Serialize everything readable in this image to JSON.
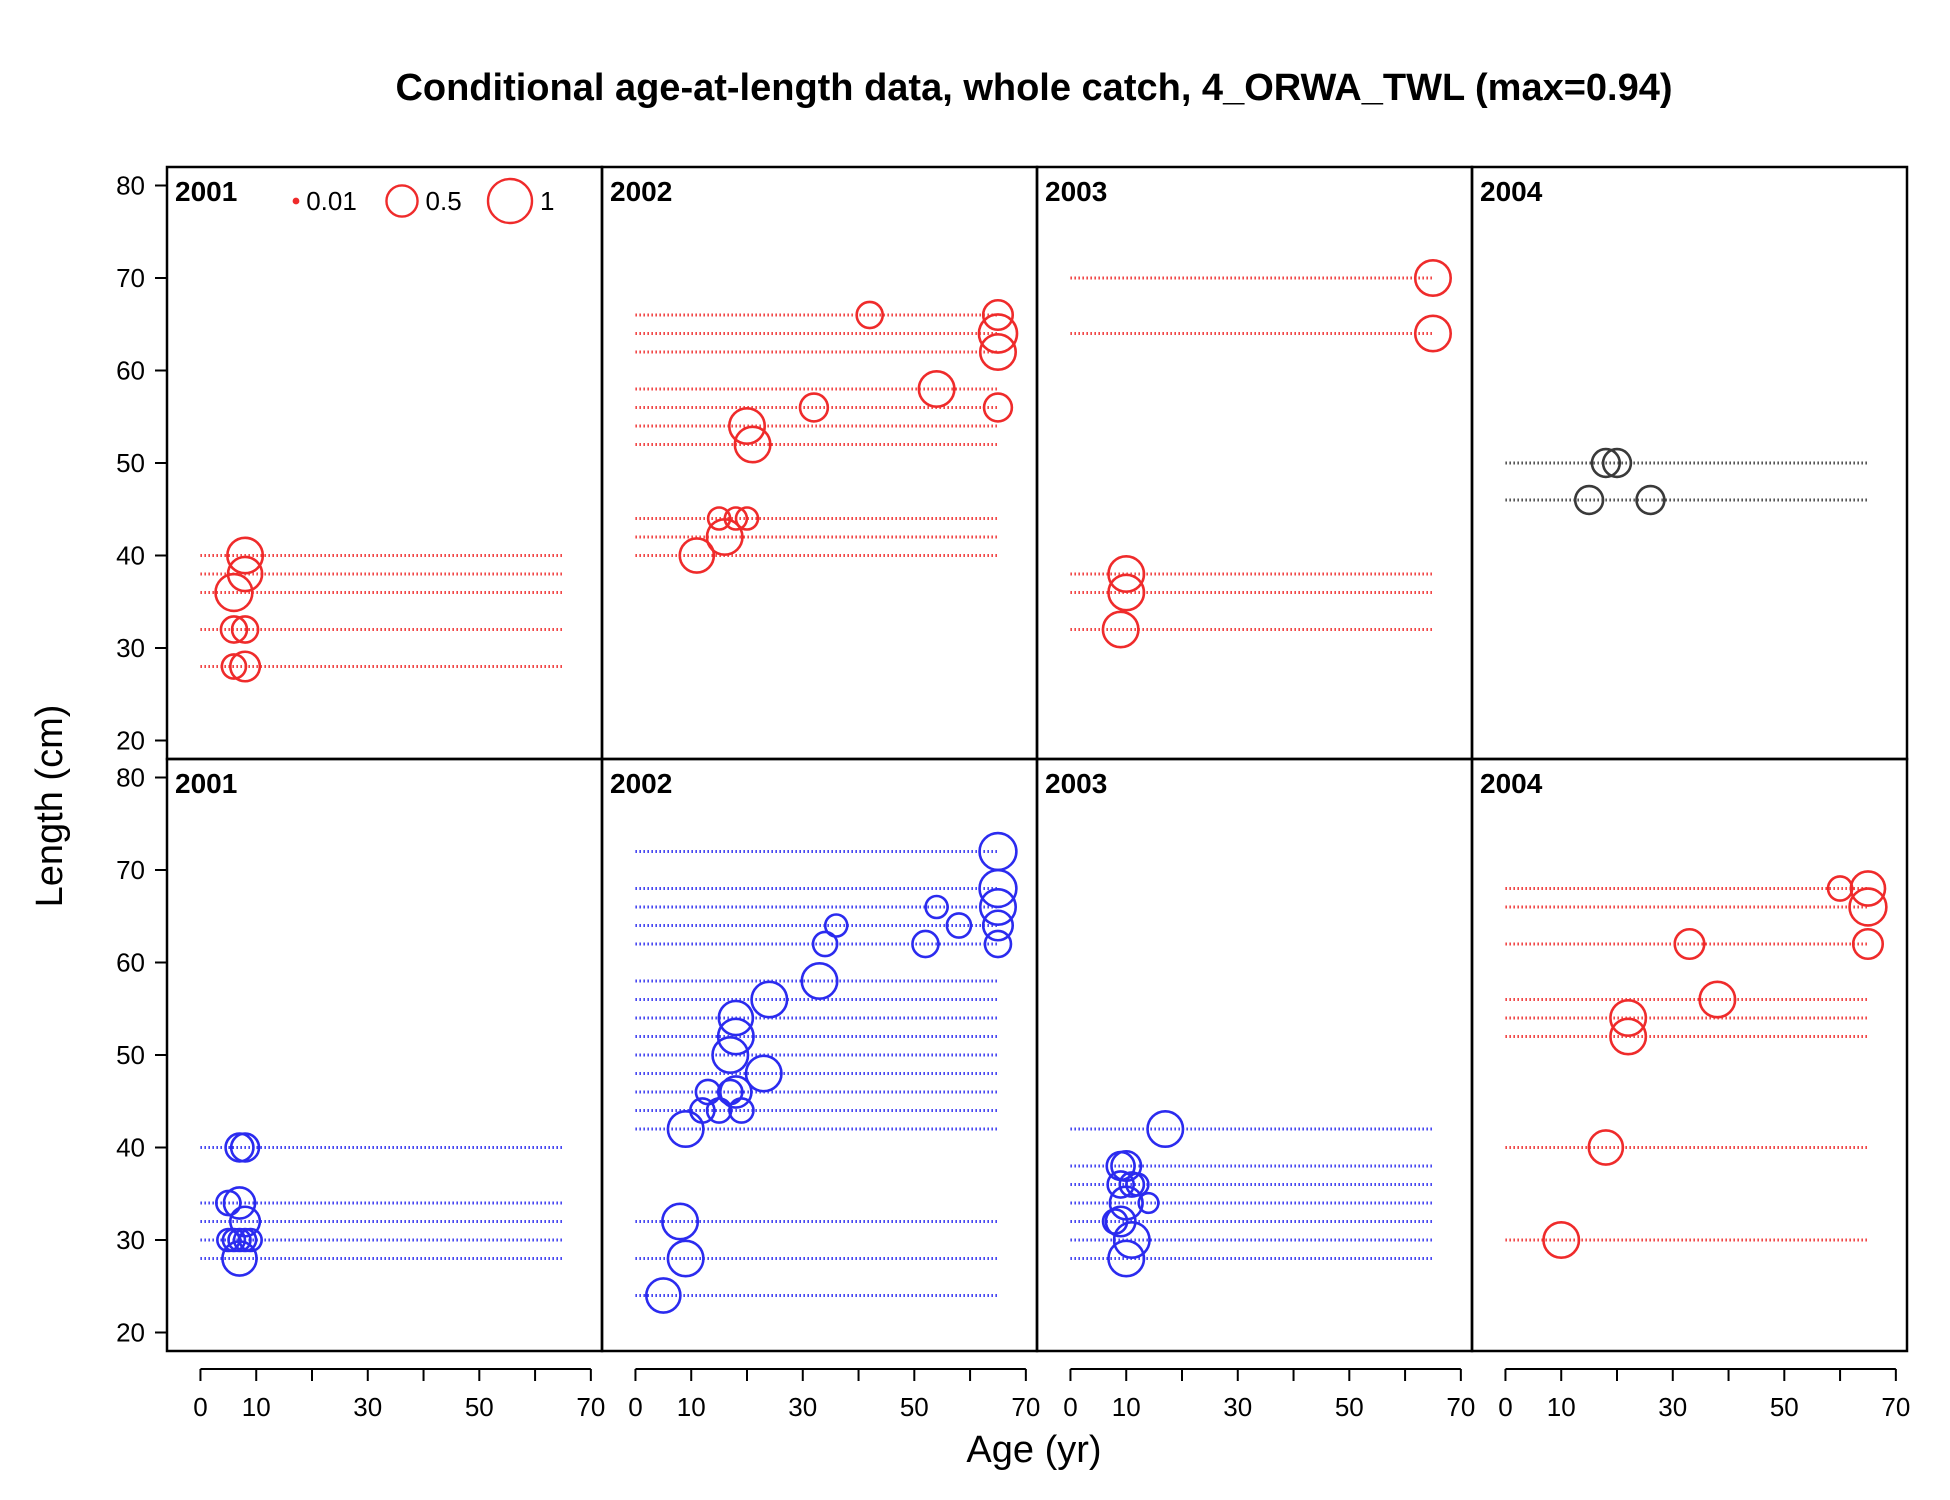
{
  "chart_data": {
    "type": "scatter",
    "title": "Conditional age-at-length data, whole catch, 4_ORWA_TWL (max=0.94)",
    "xlabel": "Age (yr)",
    "ylabel": "Length (cm)",
    "xlim": [
      -6,
      72
    ],
    "ylim": [
      18,
      82
    ],
    "x_ticks": [
      0,
      10,
      30,
      50,
      70
    ],
    "x_minor_ticks": [
      20,
      40,
      60
    ],
    "y_ticks": [
      20,
      30,
      40,
      50,
      60,
      70,
      80
    ],
    "grid": false,
    "colors": {
      "female": "#ef2b2b",
      "male": "#2b2bef",
      "unsexed": "#3a3a3a"
    },
    "legend": {
      "placement": "top-left of first panel",
      "entries": [
        {
          "label": "0.01",
          "size": 0.01
        },
        {
          "label": "0.5",
          "size": 0.5
        },
        {
          "label": "1",
          "size": 1
        }
      ]
    },
    "panels": [
      {
        "label": "2001",
        "row": 0,
        "col": 0,
        "color": "#ef2b2b",
        "lines": [
          {
            "y": 28,
            "x_end": 65
          },
          {
            "y": 32,
            "x_end": 65
          },
          {
            "y": 36,
            "x_end": 65
          },
          {
            "y": 38,
            "x_end": 65
          },
          {
            "y": 40,
            "x_end": 65
          }
        ],
        "points": [
          {
            "x": 6,
            "y": 28,
            "size": 0.3
          },
          {
            "x": 8,
            "y": 28,
            "size": 0.45
          },
          {
            "x": 6,
            "y": 32,
            "size": 0.35
          },
          {
            "x": 8,
            "y": 32,
            "size": 0.35
          },
          {
            "x": 6,
            "y": 36,
            "size": 0.7
          },
          {
            "x": 8,
            "y": 38,
            "size": 0.6
          },
          {
            "x": 8,
            "y": 40,
            "size": 0.65
          }
        ]
      },
      {
        "label": "2002",
        "row": 0,
        "col": 1,
        "color": "#ef2b2b",
        "lines": [
          {
            "y": 40,
            "x_end": 65
          },
          {
            "y": 42,
            "x_end": 65
          },
          {
            "y": 44,
            "x_end": 65
          },
          {
            "y": 52,
            "x_end": 65
          },
          {
            "y": 54,
            "x_end": 65
          },
          {
            "y": 56,
            "x_end": 65
          },
          {
            "y": 58,
            "x_end": 65
          },
          {
            "y": 62,
            "x_end": 65
          },
          {
            "y": 64,
            "x_end": 65
          },
          {
            "y": 66,
            "x_end": 65
          }
        ],
        "points": [
          {
            "x": 11,
            "y": 40,
            "size": 0.6
          },
          {
            "x": 16,
            "y": 42,
            "size": 0.65
          },
          {
            "x": 15,
            "y": 44,
            "size": 0.25
          },
          {
            "x": 18,
            "y": 44,
            "size": 0.25
          },
          {
            "x": 20,
            "y": 44,
            "size": 0.25
          },
          {
            "x": 21,
            "y": 52,
            "size": 0.65
          },
          {
            "x": 20,
            "y": 54,
            "size": 0.65
          },
          {
            "x": 32,
            "y": 56,
            "size": 0.4
          },
          {
            "x": 65,
            "y": 56,
            "size": 0.4
          },
          {
            "x": 54,
            "y": 58,
            "size": 0.65
          },
          {
            "x": 65,
            "y": 62,
            "size": 0.65
          },
          {
            "x": 65,
            "y": 64,
            "size": 0.75
          },
          {
            "x": 42,
            "y": 66,
            "size": 0.35
          },
          {
            "x": 65,
            "y": 66,
            "size": 0.45
          }
        ]
      },
      {
        "label": "2003",
        "row": 0,
        "col": 2,
        "color": "#ef2b2b",
        "lines": [
          {
            "y": 32,
            "x_end": 65
          },
          {
            "y": 36,
            "x_end": 65
          },
          {
            "y": 38,
            "x_end": 65
          },
          {
            "y": 64,
            "x_end": 65
          },
          {
            "y": 70,
            "x_end": 65
          }
        ],
        "points": [
          {
            "x": 9,
            "y": 32,
            "size": 0.65
          },
          {
            "x": 10,
            "y": 36,
            "size": 0.65
          },
          {
            "x": 10,
            "y": 38,
            "size": 0.65
          },
          {
            "x": 65,
            "y": 64,
            "size": 0.65
          },
          {
            "x": 65,
            "y": 70,
            "size": 0.65
          }
        ]
      },
      {
        "label": "2004",
        "row": 0,
        "col": 3,
        "color": "#3a3a3a",
        "lines": [
          {
            "y": 46,
            "x_end": 65
          },
          {
            "y": 50,
            "x_end": 65
          }
        ],
        "points": [
          {
            "x": 15,
            "y": 46,
            "size": 0.4
          },
          {
            "x": 26,
            "y": 46,
            "size": 0.4
          },
          {
            "x": 18,
            "y": 50,
            "size": 0.4
          },
          {
            "x": 20,
            "y": 50,
            "size": 0.4
          }
        ]
      },
      {
        "label": "2001",
        "row": 1,
        "col": 0,
        "color": "#2b2bef",
        "lines": [
          {
            "y": 28,
            "x_end": 65
          },
          {
            "y": 30,
            "x_end": 65
          },
          {
            "y": 32,
            "x_end": 65
          },
          {
            "y": 34,
            "x_end": 65
          },
          {
            "y": 40,
            "x_end": 65
          }
        ],
        "points": [
          {
            "x": 7,
            "y": 28,
            "size": 0.6
          },
          {
            "x": 5,
            "y": 30,
            "size": 0.25
          },
          {
            "x": 6,
            "y": 30,
            "size": 0.25
          },
          {
            "x": 7,
            "y": 30,
            "size": 0.25
          },
          {
            "x": 8,
            "y": 30,
            "size": 0.25
          },
          {
            "x": 9,
            "y": 30,
            "size": 0.25
          },
          {
            "x": 8,
            "y": 32,
            "size": 0.45
          },
          {
            "x": 5,
            "y": 34,
            "size": 0.3
          },
          {
            "x": 7,
            "y": 34,
            "size": 0.5
          },
          {
            "x": 7,
            "y": 40,
            "size": 0.4
          },
          {
            "x": 8,
            "y": 40,
            "size": 0.4
          }
        ]
      },
      {
        "label": "2002",
        "row": 1,
        "col": 1,
        "color": "#2b2bef",
        "lines": [
          {
            "y": 24,
            "x_end": 65
          },
          {
            "y": 28,
            "x_end": 65
          },
          {
            "y": 32,
            "x_end": 65
          },
          {
            "y": 42,
            "x_end": 65
          },
          {
            "y": 44,
            "x_end": 65
          },
          {
            "y": 46,
            "x_end": 65
          },
          {
            "y": 48,
            "x_end": 65
          },
          {
            "y": 50,
            "x_end": 65
          },
          {
            "y": 52,
            "x_end": 65
          },
          {
            "y": 54,
            "x_end": 65
          },
          {
            "y": 56,
            "x_end": 65
          },
          {
            "y": 58,
            "x_end": 65
          },
          {
            "y": 62,
            "x_end": 65
          },
          {
            "y": 64,
            "x_end": 65
          },
          {
            "y": 66,
            "x_end": 65
          },
          {
            "y": 68,
            "x_end": 65
          },
          {
            "y": 72,
            "x_end": 65
          }
        ],
        "points": [
          {
            "x": 5,
            "y": 24,
            "size": 0.6
          },
          {
            "x": 9,
            "y": 28,
            "size": 0.65
          },
          {
            "x": 8,
            "y": 32,
            "size": 0.65
          },
          {
            "x": 9,
            "y": 42,
            "size": 0.65
          },
          {
            "x": 12,
            "y": 44,
            "size": 0.3
          },
          {
            "x": 15,
            "y": 44,
            "size": 0.3
          },
          {
            "x": 19,
            "y": 44,
            "size": 0.3
          },
          {
            "x": 13,
            "y": 46,
            "size": 0.3
          },
          {
            "x": 17,
            "y": 46,
            "size": 0.3
          },
          {
            "x": 18,
            "y": 46,
            "size": 0.5
          },
          {
            "x": 23,
            "y": 48,
            "size": 0.65
          },
          {
            "x": 17,
            "y": 50,
            "size": 0.65
          },
          {
            "x": 18,
            "y": 52,
            "size": 0.65
          },
          {
            "x": 18,
            "y": 54,
            "size": 0.6
          },
          {
            "x": 24,
            "y": 56,
            "size": 0.65
          },
          {
            "x": 33,
            "y": 58,
            "size": 0.65
          },
          {
            "x": 34,
            "y": 62,
            "size": 0.3
          },
          {
            "x": 52,
            "y": 62,
            "size": 0.35
          },
          {
            "x": 65,
            "y": 62,
            "size": 0.35
          },
          {
            "x": 36,
            "y": 64,
            "size": 0.25
          },
          {
            "x": 58,
            "y": 64,
            "size": 0.3
          },
          {
            "x": 65,
            "y": 64,
            "size": 0.45
          },
          {
            "x": 54,
            "y": 66,
            "size": 0.25
          },
          {
            "x": 65,
            "y": 66,
            "size": 0.65
          },
          {
            "x": 65,
            "y": 68,
            "size": 0.7
          },
          {
            "x": 65,
            "y": 72,
            "size": 0.7
          }
        ]
      },
      {
        "label": "2003",
        "row": 1,
        "col": 2,
        "color": "#2b2bef",
        "lines": [
          {
            "y": 28,
            "x_end": 65
          },
          {
            "y": 30,
            "x_end": 65
          },
          {
            "y": 32,
            "x_end": 65
          },
          {
            "y": 34,
            "x_end": 65
          },
          {
            "y": 36,
            "x_end": 65
          },
          {
            "y": 38,
            "x_end": 65
          },
          {
            "y": 42,
            "x_end": 65
          }
        ],
        "points": [
          {
            "x": 10,
            "y": 28,
            "size": 0.65
          },
          {
            "x": 11,
            "y": 30,
            "size": 0.65
          },
          {
            "x": 8,
            "y": 32,
            "size": 0.3
          },
          {
            "x": 9,
            "y": 32,
            "size": 0.45
          },
          {
            "x": 10,
            "y": 34,
            "size": 0.55
          },
          {
            "x": 14,
            "y": 34,
            "size": 0.2
          },
          {
            "x": 9,
            "y": 36,
            "size": 0.35
          },
          {
            "x": 11,
            "y": 36,
            "size": 0.3
          },
          {
            "x": 12,
            "y": 36,
            "size": 0.25
          },
          {
            "x": 9,
            "y": 38,
            "size": 0.4
          },
          {
            "x": 10,
            "y": 38,
            "size": 0.45
          },
          {
            "x": 17,
            "y": 42,
            "size": 0.65
          }
        ]
      },
      {
        "label": "2004",
        "row": 1,
        "col": 3,
        "color": "#ef2b2b",
        "lines": [
          {
            "y": 30,
            "x_end": 65
          },
          {
            "y": 40,
            "x_end": 65
          },
          {
            "y": 52,
            "x_end": 65
          },
          {
            "y": 54,
            "x_end": 65
          },
          {
            "y": 56,
            "x_end": 65
          },
          {
            "y": 62,
            "x_end": 65
          },
          {
            "y": 66,
            "x_end": 65
          },
          {
            "y": 68,
            "x_end": 65
          }
        ],
        "points": [
          {
            "x": 10,
            "y": 30,
            "size": 0.65
          },
          {
            "x": 18,
            "y": 40,
            "size": 0.6
          },
          {
            "x": 22,
            "y": 52,
            "size": 0.65
          },
          {
            "x": 22,
            "y": 54,
            "size": 0.65
          },
          {
            "x": 38,
            "y": 56,
            "size": 0.65
          },
          {
            "x": 33,
            "y": 62,
            "size": 0.45
          },
          {
            "x": 65,
            "y": 62,
            "size": 0.45
          },
          {
            "x": 65,
            "y": 66,
            "size": 0.7
          },
          {
            "x": 60,
            "y": 68,
            "size": 0.3
          },
          {
            "x": 65,
            "y": 68,
            "size": 0.6
          }
        ]
      }
    ]
  }
}
